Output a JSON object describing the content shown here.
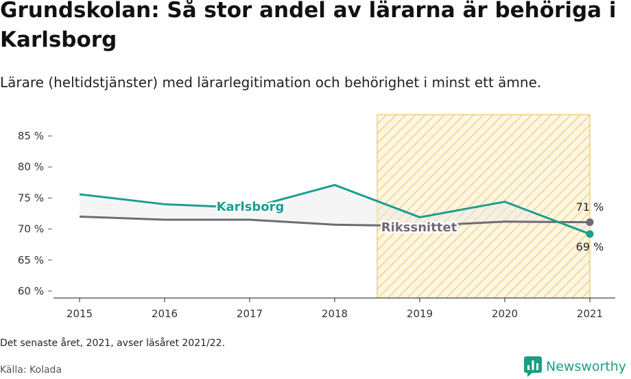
{
  "header": {
    "title": "Grundskolan: Så stor andel av lärarna är behöriga i Karlsborg",
    "subtitle": "Lärare (heltidstjänster) med lärarlegitimation och behörighet i minst ett ämne."
  },
  "footer": {
    "note": "Det senaste året, 2021, avser läsåret 2021/22.",
    "source": "Källa: Kolada",
    "brand": "Newsworthy"
  },
  "colors": {
    "karlsborg": "#1a9e8e",
    "riksnitt": "#6e6a75",
    "highlight": "#f2c55c",
    "brand": "#1a9e84"
  },
  "icons": {
    "brand": "newsworthy-logo-icon"
  },
  "chart_data": {
    "type": "line",
    "x": [
      "2015",
      "2016",
      "2017",
      "2018",
      "2019",
      "2020",
      "2021"
    ],
    "series": [
      {
        "name": "Karlsborg",
        "values": [
          75.6,
          74.0,
          73.4,
          77.1,
          71.9,
          74.4,
          69.2
        ],
        "end_label": "69 %"
      },
      {
        "name": "Rikssnittet",
        "values": [
          72.0,
          71.5,
          71.5,
          70.7,
          70.5,
          71.2,
          71.1
        ],
        "end_label": "71 %"
      }
    ],
    "ylim": [
      60,
      85
    ],
    "yticks": [
      {
        "value": 60,
        "label": "60 %"
      },
      {
        "value": 65,
        "label": "65 %"
      },
      {
        "value": 70,
        "label": "70 %"
      },
      {
        "value": 75,
        "label": "75 %"
      },
      {
        "value": 80,
        "label": "80 %"
      },
      {
        "value": 85,
        "label": "85 %"
      }
    ],
    "highlight_range": [
      "2018.5",
      "2021"
    ],
    "grid": false,
    "xlabel": "",
    "ylabel": ""
  }
}
